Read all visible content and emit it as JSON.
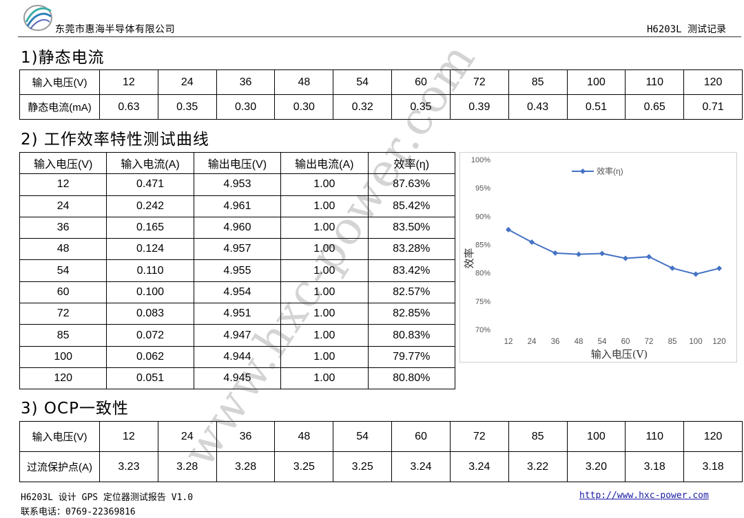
{
  "header": {
    "company": "东莞市惠海半导体有限公司",
    "doc_title": "H6203L 测试记录"
  },
  "section1": {
    "title": "1)静态电流",
    "rows": [
      [
        "输入电压(V)",
        "12",
        "24",
        "36",
        "48",
        "54",
        "60",
        "72",
        "85",
        "100",
        "110",
        "120"
      ],
      [
        "静态电流(mA)",
        "0.63",
        "0.35",
        "0.30",
        "0.30",
        "0.32",
        "0.35",
        "0.39",
        "0.43",
        "0.51",
        "0.65",
        "0.71"
      ]
    ]
  },
  "section2": {
    "title": "2) 工作效率特性测试曲线",
    "headers": [
      "输入电压(V)",
      "输入电流(A)",
      "输出电压(V)",
      "输出电流(A)",
      "效率(η)"
    ],
    "rows": [
      [
        "12",
        "0.471",
        "4.953",
        "1.00",
        "87.63%"
      ],
      [
        "24",
        "0.242",
        "4.961",
        "1.00",
        "85.42%"
      ],
      [
        "36",
        "0.165",
        "4.960",
        "1.00",
        "83.50%"
      ],
      [
        "48",
        "0.124",
        "4.957",
        "1.00",
        "83.28%"
      ],
      [
        "54",
        "0.110",
        "4.955",
        "1.00",
        "83.42%"
      ],
      [
        "60",
        "0.100",
        "4.954",
        "1.00",
        "82.57%"
      ],
      [
        "72",
        "0.083",
        "4.951",
        "1.00",
        "82.85%"
      ],
      [
        "85",
        "0.072",
        "4.947",
        "1.00",
        "80.83%"
      ],
      [
        "100",
        "0.062",
        "4.944",
        "1.00",
        "79.77%"
      ],
      [
        "120",
        "0.051",
        "4.945",
        "1.00",
        "80.80%"
      ]
    ]
  },
  "chart_data": {
    "type": "line",
    "categories": [
      "12",
      "24",
      "36",
      "48",
      "54",
      "60",
      "72",
      "85",
      "100",
      "120"
    ],
    "series": [
      {
        "name": "效率(η)",
        "values": [
          87.63,
          85.42,
          83.5,
          83.28,
          83.42,
          82.57,
          82.85,
          80.83,
          79.77,
          80.8
        ],
        "color": "#4472c4"
      }
    ],
    "yticks": [
      "100%",
      "95%",
      "90%",
      "85%",
      "80%",
      "75%",
      "70%"
    ],
    "ylim": [
      70,
      100
    ],
    "xlabel": "输入电压(V)",
    "ylabel": "效率",
    "legend": "top",
    "grid": false
  },
  "section3": {
    "title": "3) OCP一致性",
    "rows": [
      [
        "输入电压(V)",
        "12",
        "24",
        "36",
        "48",
        "54",
        "60",
        "72",
        "85",
        "100",
        "110",
        "120"
      ],
      [
        "过流保护点(A)",
        "3.23",
        "3.28",
        "3.28",
        "3.25",
        "3.25",
        "3.24",
        "3.24",
        "3.22",
        "3.20",
        "3.18",
        "3.18"
      ]
    ]
  },
  "footer": {
    "line1": "H6203L 设计 GPS 定位器测试报告 V1.0",
    "line2": "联系电话：0769-22369816",
    "link": "http://www.hxc-power.com"
  },
  "watermark": "www.hxc-power.com",
  "logo_icon": "company-logo-icon"
}
